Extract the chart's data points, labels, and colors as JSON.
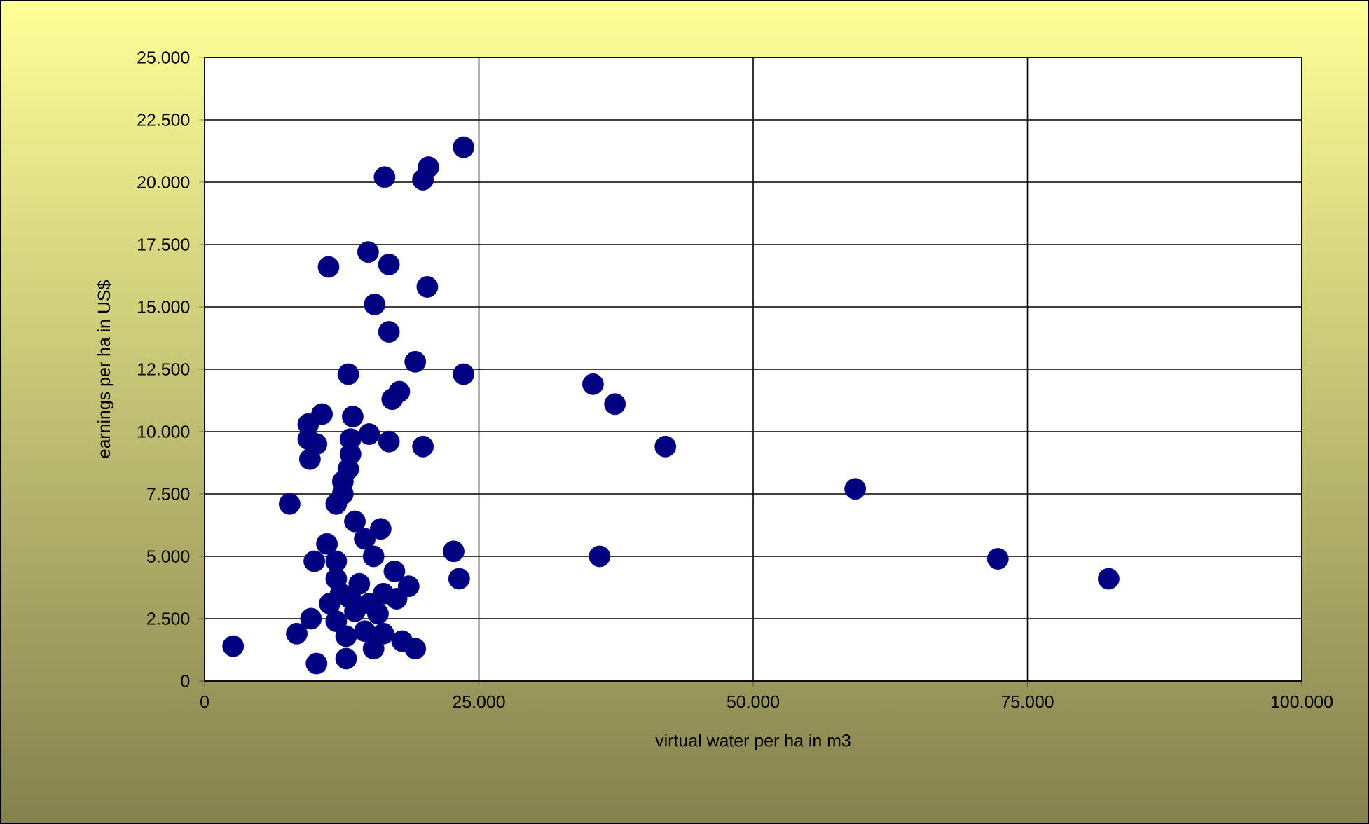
{
  "chart_data": {
    "type": "scatter",
    "xlabel": "virtual water per ha in m3",
    "ylabel": "earnings per ha in US$",
    "xlim": [
      0,
      100000
    ],
    "ylim": [
      0,
      25000
    ],
    "xticks": [
      {
        "value": 0,
        "label": "0"
      },
      {
        "value": 25000,
        "label": "25.000"
      },
      {
        "value": 50000,
        "label": "50.000"
      },
      {
        "value": 75000,
        "label": "75.000"
      },
      {
        "value": 100000,
        "label": "100.000"
      }
    ],
    "yticks": [
      {
        "value": 0,
        "label": "0"
      },
      {
        "value": 2500,
        "label": "2.500"
      },
      {
        "value": 5000,
        "label": "5.000"
      },
      {
        "value": 7500,
        "label": "7.500"
      },
      {
        "value": 10000,
        "label": "10.000"
      },
      {
        "value": 12500,
        "label": "12.500"
      },
      {
        "value": 15000,
        "label": "15.000"
      },
      {
        "value": 17500,
        "label": "17.500"
      },
      {
        "value": 20000,
        "label": "20.000"
      },
      {
        "value": 22500,
        "label": "22.500"
      },
      {
        "value": 25000,
        "label": "25.000"
      }
    ],
    "grid": true,
    "marker": "circle",
    "series": [
      {
        "color": "#000080",
        "x": [
          23600,
          16400,
          20400,
          19900,
          11300,
          14900,
          16800,
          20300,
          15500,
          16800,
          19200,
          13100,
          23600,
          17750,
          17100,
          10700,
          9450,
          13500,
          15000,
          16800,
          19900,
          9450,
          10200,
          13300,
          13300,
          9600,
          13100,
          12600,
          12600,
          7750,
          12000,
          13700,
          16050,
          11150,
          14600,
          10000,
          12000,
          15400,
          22700,
          23200,
          17300,
          18600,
          17500,
          12000,
          12400,
          11400,
          14100,
          15000,
          9700,
          8400,
          2600,
          10200,
          12900,
          15400,
          18000,
          19200,
          12900,
          14600,
          16300,
          12000,
          13700,
          15800,
          13300,
          16300,
          35400,
          37400,
          42000,
          59300,
          36000,
          72300,
          82400
        ],
        "values": [
          21400,
          20200,
          20600,
          20100,
          16600,
          17200,
          16700,
          15800,
          15100,
          14000,
          12800,
          12300,
          12300,
          11600,
          11300,
          10700,
          10300,
          10600,
          9900,
          9600,
          9400,
          9700,
          9500,
          9700,
          9100,
          8900,
          8500,
          8000,
          7500,
          7100,
          7100,
          6400,
          6100,
          5500,
          5700,
          4800,
          4800,
          5000,
          5200,
          4100,
          4400,
          3800,
          3300,
          4100,
          3500,
          3100,
          3900,
          3100,
          2500,
          1900,
          1400,
          700,
          900,
          1300,
          1600,
          1300,
          1800,
          2000,
          1900,
          2400,
          2800,
          2700,
          3300,
          3500,
          11900,
          11100,
          9400,
          7700,
          5000,
          4900,
          4100
        ]
      }
    ]
  }
}
